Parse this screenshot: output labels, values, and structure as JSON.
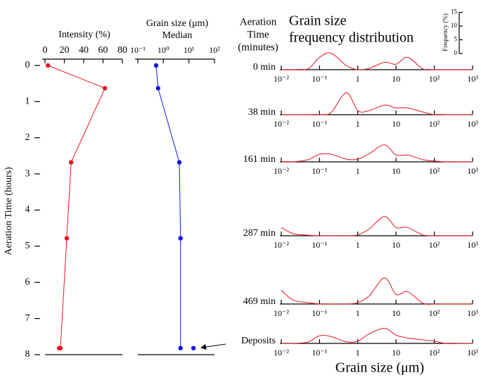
{
  "chart_data": [
    {
      "type": "line",
      "xlabel": "Intensity (%)",
      "ylabel": "Aeration Time (hours)",
      "xlim": [
        0,
        80
      ],
      "xticks": [
        0,
        20,
        40,
        60,
        80
      ],
      "ylim": [
        0,
        8
      ],
      "yticks": [
        0,
        1,
        2,
        3,
        4,
        5,
        6,
        7,
        8
      ],
      "series": [
        {
          "color": "#e8141e",
          "x": [
            3,
            62,
            27,
            22.5,
            16
          ],
          "values": [
            0,
            0.63,
            2.68,
            4.78,
            7.82
          ],
          "line": true
        },
        {
          "color": "#e8141e",
          "x": [
            14.5
          ],
          "values": [
            7.82
          ],
          "line": false
        }
      ]
    },
    {
      "type": "line",
      "title": [
        "Grain size (μm)",
        "Median"
      ],
      "xscale": "log",
      "xlim": [
        0.1,
        100
      ],
      "xticks": [
        {
          "value": 0.1,
          "label": "10⁻¹"
        },
        {
          "value": 1,
          "label": "10⁰"
        },
        {
          "value": 10,
          "label": "10¹"
        },
        {
          "value": 100,
          "label": "10²"
        }
      ],
      "ylim": [
        0,
        8
      ],
      "series": [
        {
          "color": "#1414e0",
          "x": [
            0.52,
            0.62,
            4.2,
            4.7,
            4.7
          ],
          "values": [
            0,
            0.63,
            2.68,
            4.78,
            7.82
          ],
          "line": true
        },
        {
          "color": "#1414e0",
          "x": [
            15
          ],
          "values": [
            7.82
          ],
          "line": false
        }
      ]
    },
    {
      "type": "line",
      "title": [
        "Grain size",
        "frequency distribution"
      ],
      "header": [
        "Aeration",
        "Time",
        "(minutes)"
      ],
      "xlabel": "Grain size (μm)",
      "ylabel": "Frequency (%)",
      "xscale": "log",
      "xlim": [
        0.01,
        1000
      ],
      "xticks": [
        {
          "value": 0.01,
          "label": "10⁻²"
        },
        {
          "value": 0.1,
          "label": "10⁻¹"
        },
        1,
        10,
        {
          "value": 100,
          "label": "10²"
        },
        {
          "value": 1000,
          "label": "10³"
        }
      ],
      "ylim": [
        0,
        15
      ],
      "yticks": [
        0,
        5,
        10,
        15
      ],
      "x": [
        0.01,
        0.02,
        0.05,
        0.1,
        0.2,
        0.5,
        1,
        2,
        5,
        10,
        20,
        50,
        100,
        200,
        500,
        1000
      ],
      "series": [
        {
          "name": "0 min",
          "color": "#e8141e",
          "values": [
            0,
            0,
            0.3,
            4.5,
            6,
            1.5,
            0,
            0.5,
            2.7,
            2,
            4.5,
            0.3,
            0,
            0,
            0,
            0
          ]
        },
        {
          "name": "38 min",
          "color": "#e8141e",
          "values": [
            0,
            0,
            0,
            0,
            0.8,
            8,
            1.5,
            1.5,
            3.5,
            2.5,
            2.5,
            1,
            0,
            0,
            0,
            0
          ]
        },
        {
          "name": "161 min",
          "color": "#e8141e",
          "values": [
            0,
            0,
            0.8,
            2.8,
            2.8,
            1,
            1,
            3,
            6.2,
            2.5,
            2.5,
            0.8,
            0.3,
            0,
            0,
            0
          ]
        },
        {
          "name": "287 min",
          "color": "#e8141e",
          "values": [
            3,
            0.8,
            0.2,
            0,
            0,
            0,
            0.3,
            2.5,
            7,
            3,
            3,
            0.3,
            0,
            0,
            0,
            0
          ]
        },
        {
          "name": "469 min",
          "color": "#e8141e",
          "values": [
            5,
            1.5,
            0.5,
            0,
            0,
            0,
            0.5,
            3,
            9.5,
            3.5,
            4.5,
            0.3,
            0,
            0,
            0,
            0
          ]
        },
        {
          "name": "Deposits",
          "color": "#e8141e",
          "values": [
            0,
            0,
            0.5,
            2.8,
            2.5,
            0.6,
            0.8,
            3.5,
            5.5,
            3,
            2,
            1.3,
            0.8,
            0,
            0,
            0
          ]
        }
      ]
    }
  ]
}
